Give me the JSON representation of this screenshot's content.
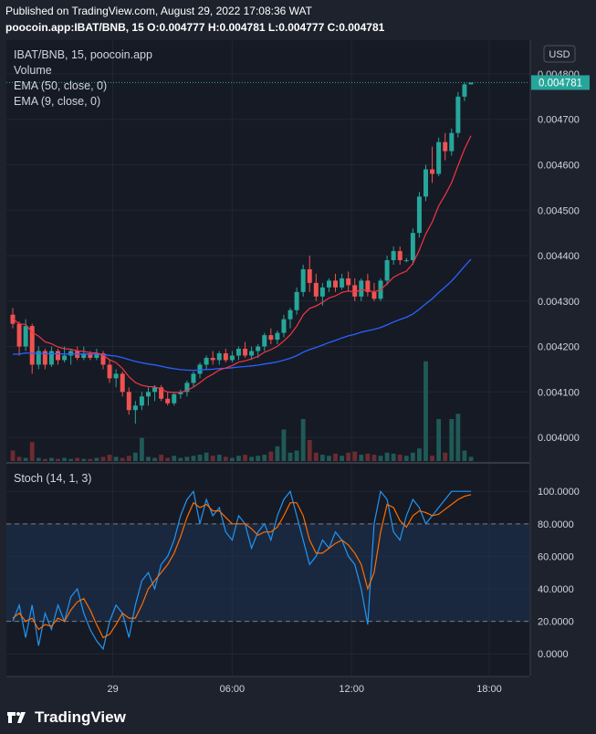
{
  "header": {
    "published": "Published on TradingView.com, August 29, 2022 17:08:36 WAT",
    "ohlc": "poocoin.app:IBAT/BNB, 15 O:0.004777 H:0.004781 L:0.004777 C:0.004781"
  },
  "legend": {
    "symbol": "IBAT/BNB, 15, poocoin.app",
    "volume": "Volume",
    "ema50": "EMA (50, close, 0)",
    "ema9": "EMA (9, close, 0)",
    "stoch": "Stoch (14, 1, 3)"
  },
  "currency_button": "USD",
  "last_price_label": "0.004781",
  "footer": {
    "brand": "TradingView"
  },
  "colors": {
    "background": "#1e222d",
    "up": "#26a69a",
    "down": "#ef5350",
    "ema50": "#2962ff",
    "ema9": "#f23645",
    "stoch_k": "#2196f3",
    "stoch_d": "#ff6d00",
    "band": "#1f3556"
  },
  "chart_data": [
    {
      "type": "candlestick",
      "price_axis_ticks": [
        "0.004000",
        "0.004100",
        "0.004200",
        "0.004300",
        "0.004400",
        "0.004500",
        "0.004600",
        "0.004700",
        "0.004800"
      ],
      "ylim": [
        0.00397,
        0.00481
      ],
      "time_axis_ticks": [
        "29",
        "06:00",
        "12:00",
        "18:00"
      ],
      "last_price": 0.004781,
      "candles": [
        [
          0.00427,
          0.004285,
          0.00424,
          0.00425
        ],
        [
          0.00425,
          0.004255,
          0.00418,
          0.0042
        ],
        [
          0.0042,
          0.00426,
          0.00419,
          0.004245
        ],
        [
          0.004245,
          0.00425,
          0.00414,
          0.00416
        ],
        [
          0.00416,
          0.0042,
          0.00415,
          0.00419
        ],
        [
          0.00419,
          0.004195,
          0.00415,
          0.00416
        ],
        [
          0.00416,
          0.0042,
          0.004155,
          0.00419
        ],
        [
          0.00419,
          0.004195,
          0.00416,
          0.00417
        ],
        [
          0.00417,
          0.0042,
          0.004165,
          0.00418
        ],
        [
          0.00418,
          0.004195,
          0.00416,
          0.00419
        ],
        [
          0.00419,
          0.0042,
          0.00417,
          0.004175
        ],
        [
          0.004175,
          0.0042,
          0.00417,
          0.004185
        ],
        [
          0.004185,
          0.00419,
          0.00417,
          0.004175
        ],
        [
          0.004175,
          0.004195,
          0.00417,
          0.004185
        ],
        [
          0.004185,
          0.00419,
          0.00415,
          0.00416
        ],
        [
          0.00416,
          0.00417,
          0.00412,
          0.00413
        ],
        [
          0.00413,
          0.00415,
          0.00411,
          0.00414
        ],
        [
          0.00414,
          0.004145,
          0.00409,
          0.0041
        ],
        [
          0.0041,
          0.00411,
          0.00405,
          0.00406
        ],
        [
          0.00406,
          0.00408,
          0.00403,
          0.00407
        ],
        [
          0.00407,
          0.0041,
          0.00406,
          0.00409
        ],
        [
          0.00409,
          0.00411,
          0.00407,
          0.0041
        ],
        [
          0.0041,
          0.004115,
          0.00408,
          0.00411
        ],
        [
          0.00411,
          0.004115,
          0.00408,
          0.004085
        ],
        [
          0.004085,
          0.0041,
          0.00407,
          0.004075
        ],
        [
          0.004075,
          0.0041,
          0.00407,
          0.004095
        ],
        [
          0.004095,
          0.004105,
          0.004085,
          0.0041
        ],
        [
          0.0041,
          0.004125,
          0.00409,
          0.00412
        ],
        [
          0.00412,
          0.004145,
          0.00411,
          0.00414
        ],
        [
          0.00414,
          0.004165,
          0.00413,
          0.00416
        ],
        [
          0.00416,
          0.00418,
          0.00415,
          0.004175
        ],
        [
          0.004175,
          0.00419,
          0.00416,
          0.00417
        ],
        [
          0.00417,
          0.00419,
          0.00416,
          0.004185
        ],
        [
          0.004185,
          0.004195,
          0.004165,
          0.00417
        ],
        [
          0.00417,
          0.00419,
          0.004165,
          0.00418
        ],
        [
          0.00418,
          0.0042,
          0.00417,
          0.004195
        ],
        [
          0.004195,
          0.00421,
          0.004175,
          0.00418
        ],
        [
          0.00418,
          0.0042,
          0.00417,
          0.00419
        ],
        [
          0.00419,
          0.004205,
          0.004175,
          0.0042
        ],
        [
          0.0042,
          0.00423,
          0.00419,
          0.004225
        ],
        [
          0.004225,
          0.00424,
          0.004205,
          0.004215
        ],
        [
          0.004215,
          0.004235,
          0.004205,
          0.00423
        ],
        [
          0.00423,
          0.00427,
          0.00422,
          0.00426
        ],
        [
          0.00426,
          0.004285,
          0.00424,
          0.00428
        ],
        [
          0.00428,
          0.00433,
          0.00427,
          0.00432
        ],
        [
          0.00432,
          0.00438,
          0.00431,
          0.00437
        ],
        [
          0.00437,
          0.0044,
          0.00432,
          0.00434
        ],
        [
          0.00434,
          0.00436,
          0.0043,
          0.00431
        ],
        [
          0.00431,
          0.00434,
          0.00429,
          0.00433
        ],
        [
          0.00433,
          0.00435,
          0.00432,
          0.004345
        ],
        [
          0.004345,
          0.00436,
          0.00432,
          0.00433
        ],
        [
          0.00433,
          0.00436,
          0.004325,
          0.00435
        ],
        [
          0.00435,
          0.004365,
          0.00432,
          0.004335
        ],
        [
          0.004335,
          0.00435,
          0.0043,
          0.00431
        ],
        [
          0.00431,
          0.00435,
          0.0043,
          0.004345
        ],
        [
          0.004345,
          0.00436,
          0.00431,
          0.00432
        ],
        [
          0.00432,
          0.00434,
          0.0043,
          0.004305
        ],
        [
          0.004305,
          0.00435,
          0.0043,
          0.004345
        ],
        [
          0.004345,
          0.0044,
          0.004335,
          0.00439
        ],
        [
          0.00439,
          0.00442,
          0.00438,
          0.00441
        ],
        [
          0.00441,
          0.00442,
          0.00438,
          0.00439
        ],
        [
          0.00439,
          0.004395,
          0.004385,
          0.00439
        ],
        [
          0.00439,
          0.00446,
          0.00438,
          0.00445
        ],
        [
          0.00445,
          0.00454,
          0.00444,
          0.00453
        ],
        [
          0.00453,
          0.0046,
          0.00452,
          0.00459
        ],
        [
          0.00459,
          0.00464,
          0.00456,
          0.00458
        ],
        [
          0.00458,
          0.00466,
          0.004575,
          0.00465
        ],
        [
          0.00465,
          0.00467,
          0.00461,
          0.00463
        ],
        [
          0.00463,
          0.00468,
          0.00462,
          0.00467
        ],
        [
          0.00467,
          0.00476,
          0.00466,
          0.00475
        ],
        [
          0.00475,
          0.004781,
          0.00474,
          0.004777
        ],
        [
          0.004777,
          0.004781,
          0.004777,
          0.004781
        ]
      ],
      "volume": [
        0.1,
        0.04,
        0.03,
        0.18,
        0.03,
        0.02,
        0.03,
        0.02,
        0.03,
        0.02,
        0.03,
        0.02,
        0.02,
        0.03,
        0.04,
        0.06,
        0.04,
        0.03,
        0.05,
        0.08,
        0.22,
        0.04,
        0.03,
        0.06,
        0.03,
        0.05,
        0.03,
        0.04,
        0.05,
        0.06,
        0.08,
        0.05,
        0.06,
        0.04,
        0.03,
        0.05,
        0.06,
        0.04,
        0.05,
        0.06,
        0.09,
        0.14,
        0.3,
        0.08,
        0.1,
        0.4,
        0.2,
        0.08,
        0.06,
        0.05,
        0.07,
        0.05,
        0.08,
        0.09,
        0.06,
        0.07,
        0.06,
        0.05,
        0.08,
        0.07,
        0.06,
        0.05,
        0.08,
        0.12,
        0.95,
        0.05,
        0.4,
        0.08,
        0.4,
        0.45,
        0.1,
        0.04
      ],
      "ema50_start": 0.00418,
      "ema9_start": 0.004265
    },
    {
      "type": "line",
      "title": "Stoch (14, 1, 3)",
      "y_ticks": [
        "0.0000",
        "20.0000",
        "40.0000",
        "60.0000",
        "80.0000",
        "100.0000"
      ],
      "ylim": [
        -10,
        108
      ],
      "bands": [
        20,
        80
      ],
      "series": [
        {
          "values": [
            20,
            30,
            10,
            30,
            5,
            25,
            15,
            30,
            20,
            35,
            40,
            25,
            15,
            8,
            3,
            20,
            30,
            25,
            10,
            30,
            45,
            50,
            40,
            55,
            60,
            70,
            85,
            95,
            100,
            80,
            95,
            85,
            90,
            75,
            70,
            85,
            80,
            65,
            75,
            80,
            70,
            85,
            95,
            100,
            85,
            70,
            55,
            60,
            70,
            65,
            75,
            70,
            60,
            55,
            40,
            18,
            80,
            100,
            95,
            75,
            70,
            85,
            95,
            90,
            80,
            85,
            90,
            95,
            100,
            100,
            100,
            100
          ]
        },
        {
          "values": [
            22,
            25,
            20,
            22,
            15,
            18,
            17,
            22,
            20,
            27,
            32,
            34,
            27,
            18,
            10,
            12,
            18,
            25,
            22,
            22,
            30,
            40,
            45,
            50,
            55,
            62,
            72,
            84,
            93,
            90,
            92,
            88,
            88,
            84,
            80,
            80,
            80,
            77,
            73,
            75,
            75,
            78,
            85,
            93,
            93,
            85,
            70,
            62,
            62,
            65,
            68,
            70,
            67,
            62,
            55,
            40,
            50,
            75,
            92,
            90,
            82,
            78,
            85,
            88,
            87,
            85,
            86,
            89,
            92,
            95,
            97,
            98
          ]
        }
      ]
    }
  ]
}
